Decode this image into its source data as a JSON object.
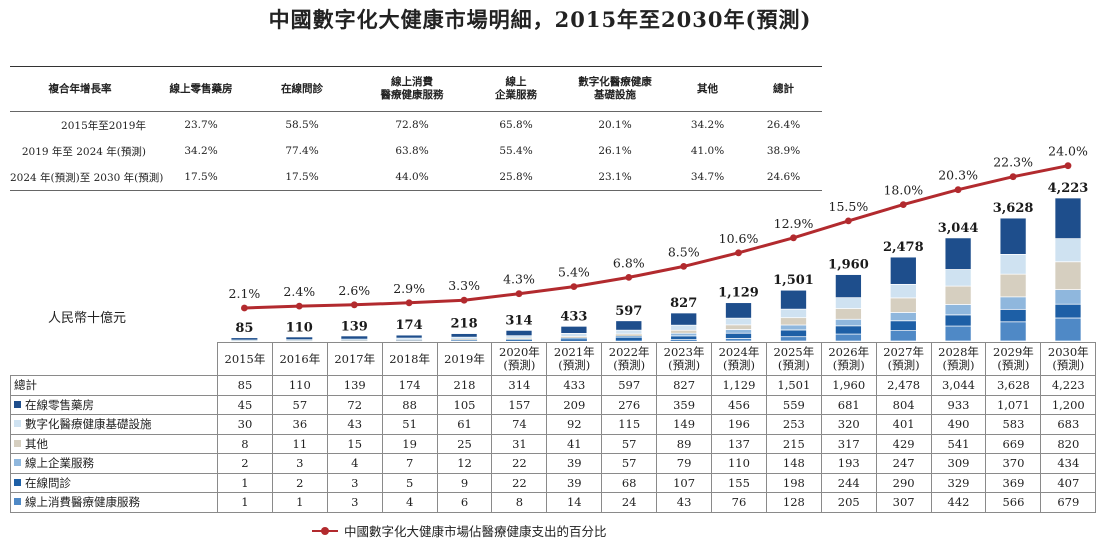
{
  "title": "中國數字化大健康市場明細，2015年至2030年(預測)",
  "unit_label": "人民幣十億元",
  "cagr_table": {
    "headers": [
      "複合年增長率",
      "線上零售藥房",
      "在線問診",
      "線上消費\n醫療健康服務",
      "線上\n企業服務",
      "數字化醫療健康\n基礎設施",
      "其他",
      "總計"
    ],
    "rows": [
      {
        "period": "2015年至2019年",
        "values": [
          "23.7%",
          "58.5%",
          "72.8%",
          "65.8%",
          "20.1%",
          "34.2%",
          "26.4%"
        ]
      },
      {
        "period": "2019 年至 2024 年(預測)",
        "values": [
          "34.2%",
          "77.4%",
          "63.8%",
          "55.4%",
          "26.1%",
          "41.0%",
          "38.9%"
        ]
      },
      {
        "period": "2024 年(預測)至 2030 年(預測)",
        "values": [
          "17.5%",
          "17.5%",
          "44.0%",
          "25.8%",
          "23.1%",
          "34.7%",
          "24.6%"
        ]
      }
    ]
  },
  "colors": {
    "online_retail_pharmacy": "#1e4e8c",
    "digital_infra": "#cfe2f1",
    "other": "#d6cfc0",
    "online_enterprise": "#8fb7dd",
    "online_consultation": "#1d5fa6",
    "online_consumer": "#4f89c6",
    "line": "#b22a2e"
  },
  "chart_data": {
    "type": "bar",
    "stacked": true,
    "categories": [
      "2015年",
      "2016年",
      "2017年",
      "2018年",
      "2019年",
      "2020年\n(預測)",
      "2021年\n(預測)",
      "2022年\n(預測)",
      "2023年\n(預測)",
      "2024年\n(預測)",
      "2025年\n(預測)",
      "2026年\n(預測)",
      "2027年\n(預測)",
      "2028年\n(預測)",
      "2029年\n(預測)",
      "2030年\n(預測)"
    ],
    "total_row_label": "總計",
    "totals": [
      "85",
      "110",
      "139",
      "174",
      "218",
      "314",
      "433",
      "597",
      "827",
      "1,129",
      "1,501",
      "1,960",
      "2,478",
      "3,044",
      "3,628",
      "4,223"
    ],
    "total_values": [
      85,
      110,
      139,
      174,
      218,
      314,
      433,
      597,
      827,
      1129,
      1501,
      1960,
      2478,
      3044,
      3628,
      4223
    ],
    "series": [
      {
        "name": "在線零售藥房",
        "key": "online_retail_pharmacy",
        "values": [
          45,
          57,
          72,
          88,
          105,
          157,
          209,
          276,
          359,
          456,
          559,
          681,
          804,
          933,
          1071,
          1200
        ],
        "labels": [
          "45",
          "57",
          "72",
          "88",
          "105",
          "157",
          "209",
          "276",
          "359",
          "456",
          "559",
          "681",
          "804",
          "933",
          "1,071",
          "1,200"
        ]
      },
      {
        "name": "數字化醫療健康基礎設施",
        "key": "digital_infra",
        "values": [
          30,
          36,
          43,
          51,
          61,
          74,
          92,
          115,
          149,
          196,
          253,
          320,
          401,
          490,
          583,
          683
        ],
        "labels": [
          "30",
          "36",
          "43",
          "51",
          "61",
          "74",
          "92",
          "115",
          "149",
          "196",
          "253",
          "320",
          "401",
          "490",
          "583",
          "683"
        ]
      },
      {
        "name": "其他",
        "key": "other",
        "values": [
          8,
          11,
          15,
          19,
          25,
          31,
          41,
          57,
          89,
          137,
          215,
          317,
          429,
          541,
          669,
          820
        ],
        "labels": [
          "8",
          "11",
          "15",
          "19",
          "25",
          "31",
          "41",
          "57",
          "89",
          "137",
          "215",
          "317",
          "429",
          "541",
          "669",
          "820"
        ]
      },
      {
        "name": "線上企業服務",
        "key": "online_enterprise",
        "values": [
          2,
          3,
          4,
          7,
          12,
          22,
          39,
          57,
          79,
          110,
          148,
          193,
          247,
          309,
          370,
          434
        ],
        "labels": [
          "2",
          "3",
          "4",
          "7",
          "12",
          "22",
          "39",
          "57",
          "79",
          "110",
          "148",
          "193",
          "247",
          "309",
          "370",
          "434"
        ]
      },
      {
        "name": "在線問診",
        "key": "online_consultation",
        "values": [
          1,
          2,
          3,
          5,
          9,
          22,
          39,
          68,
          107,
          155,
          198,
          244,
          290,
          329,
          369,
          407
        ],
        "labels": [
          "1",
          "2",
          "3",
          "5",
          "9",
          "22",
          "39",
          "68",
          "107",
          "155",
          "198",
          "244",
          "290",
          "329",
          "369",
          "407"
        ]
      },
      {
        "name": "線上消費醫療健康服務",
        "key": "online_consumer",
        "values": [
          1,
          1,
          3,
          4,
          6,
          8,
          14,
          24,
          43,
          76,
          128,
          205,
          307,
          442,
          566,
          679
        ],
        "labels": [
          "1",
          "1",
          "3",
          "4",
          "6",
          "8",
          "14",
          "24",
          "43",
          "76",
          "128",
          "205",
          "307",
          "442",
          "566",
          "679"
        ]
      }
    ],
    "line_series": {
      "name": "中國數字化大健康市場佔醫療健康支出的百分比",
      "values": [
        2.1,
        2.4,
        2.6,
        2.9,
        3.3,
        4.3,
        5.4,
        6.8,
        8.5,
        10.6,
        12.9,
        15.5,
        18.0,
        20.3,
        22.3,
        24.0
      ],
      "labels": [
        "2.1%",
        "2.4%",
        "2.6%",
        "2.9%",
        "3.3%",
        "4.3%",
        "5.4%",
        "6.8%",
        "8.5%",
        "10.6%",
        "12.9%",
        "15.5%",
        "18.0%",
        "20.3%",
        "22.3%",
        "24.0%"
      ]
    },
    "legend_position": "bottom"
  }
}
